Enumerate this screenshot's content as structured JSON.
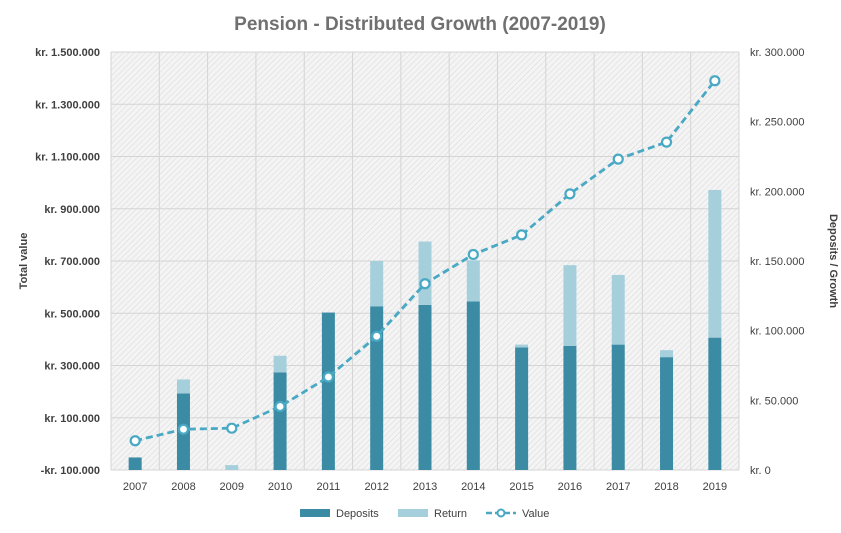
{
  "chart_data": {
    "type": "bar",
    "title": "Pension - Distributed  Growth  (2007-2019)",
    "ylabel_left": "Total value",
    "ylabel_right": "Deposits / Growth",
    "categories": [
      "2007",
      "2008",
      "2009",
      "2010",
      "2011",
      "2012",
      "2013",
      "2014",
      "2015",
      "2016",
      "2017",
      "2018",
      "2019"
    ],
    "left_axis": {
      "min": -100000,
      "max": 1500000,
      "ticks": [
        -100000,
        100000,
        300000,
        500000,
        700000,
        900000,
        1100000,
        1300000,
        1500000
      ],
      "tick_labels": [
        "-kr. 100.000",
        "kr. 100.000",
        "kr. 300.000",
        "kr. 500.000",
        "kr. 700.000",
        "kr. 900.000",
        "kr. 1.100.000",
        "kr. 1.300.000",
        "kr. 1.500.000"
      ]
    },
    "right_axis": {
      "min": 0,
      "max": 300000,
      "ticks": [
        0,
        50000,
        100000,
        150000,
        200000,
        250000,
        300000
      ],
      "tick_labels": [
        "kr. 0",
        "kr. 50.000",
        "kr. 100.000",
        "kr. 150.000",
        "kr. 200.000",
        "kr. 250.000",
        "kr. 300.000"
      ]
    },
    "series": [
      {
        "name": "Deposits",
        "axis": "right",
        "kind": "bar",
        "color": "#3a8ba3",
        "values": [
          9000,
          55000,
          0,
          70000,
          113000,
          117500,
          118500,
          121000,
          88000,
          89000,
          90000,
          81000,
          95000
        ]
      },
      {
        "name": "Return",
        "axis": "right",
        "kind": "bar-stacked",
        "color": "#a6cfdc",
        "values": [
          0,
          10000,
          3500,
          12000,
          0,
          32500,
          45500,
          29500,
          2000,
          58000,
          50000,
          5000,
          106000
        ]
      },
      {
        "name": "Value",
        "axis": "left",
        "kind": "line",
        "color": "#49a9c4",
        "values": [
          12000,
          56000,
          60000,
          143000,
          256000,
          412000,
          613000,
          725000,
          800000,
          957000,
          1090000,
          1155000,
          1390000
        ]
      }
    ],
    "legend_position": "bottom",
    "grid": true
  }
}
